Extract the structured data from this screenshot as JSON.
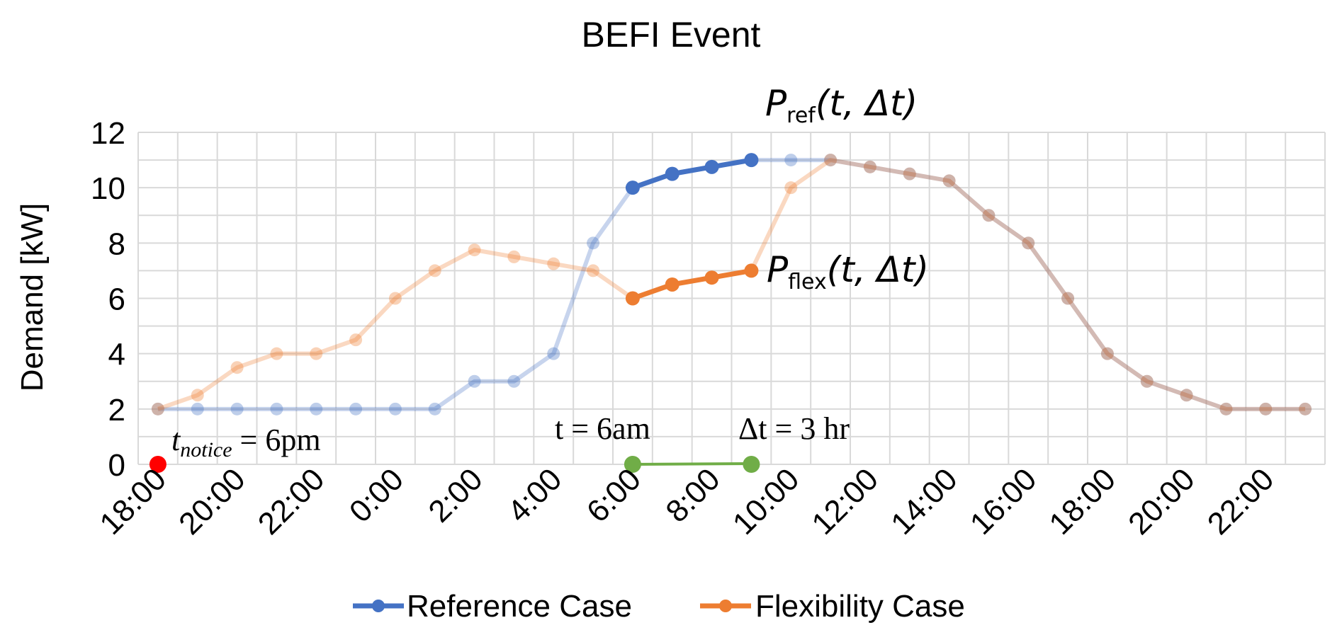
{
  "chart_data": {
    "type": "line",
    "title": "BEFI Event",
    "ylabel": "Demand [kW]",
    "xlabel": "",
    "ylim": [
      0,
      12
    ],
    "yticks": [
      0,
      2,
      4,
      6,
      8,
      10,
      12
    ],
    "grid": true,
    "categories": [
      "18:00",
      "19:00",
      "20:00",
      "21:00",
      "22:00",
      "23:00",
      "0:00",
      "1:00",
      "2:00",
      "3:00",
      "4:00",
      "5:00",
      "6:00",
      "7:00",
      "8:00",
      "9:00",
      "10:00",
      "11:00",
      "12:00",
      "13:00",
      "14:00",
      "15:00",
      "16:00",
      "17:00",
      "18:00",
      "19:00",
      "20:00",
      "21:00",
      "22:00",
      "23:00"
    ],
    "x_tick_labels": [
      "18:00",
      "20:00",
      "22:00",
      "0:00",
      "2:00",
      "4:00",
      "6:00",
      "8:00",
      "10:00",
      "12:00",
      "14:00",
      "16:00",
      "18:00",
      "20:00",
      "22:00"
    ],
    "series": [
      {
        "name": "Reference Case",
        "color": "#4472c4",
        "values": [
          2,
          2,
          2,
          2,
          2,
          2,
          2,
          2,
          3,
          3,
          4,
          8,
          10,
          10.5,
          10.75,
          11,
          11,
          11,
          10.75,
          10.5,
          10.25,
          9,
          8,
          6,
          4,
          3,
          2.5,
          2,
          2,
          2
        ]
      },
      {
        "name": "Flexibility Case",
        "color": "#ed7d31",
        "values": [
          2,
          2.5,
          3.5,
          4,
          4,
          4.5,
          6,
          7,
          7.75,
          7.5,
          7.25,
          7,
          6,
          6.5,
          6.75,
          7,
          10,
          11,
          10.75,
          10.5,
          10.25,
          9,
          8,
          6,
          4,
          3,
          2.5,
          2,
          2,
          2
        ]
      }
    ],
    "event_window": {
      "start": "6:00",
      "end": "9:00"
    },
    "notice_time": "18:00",
    "annotations": {
      "p_ref": {
        "main": "P",
        "sub": "ref",
        "args": "(t, Δt)"
      },
      "p_flex": {
        "main": "P",
        "sub": "flex",
        "args": "(t, Δt)"
      },
      "t_notice": {
        "var": "t",
        "sub": "notice",
        "rest": " = 6pm"
      },
      "t_start": {
        "text": "t = 6am"
      },
      "delta_t": {
        "text": "Δt = 3 hr"
      }
    },
    "legend_position": "bottom",
    "colors": {
      "notice_marker": "#ff0000",
      "event_marker": "#70ad47",
      "grid": "#d9d9d9"
    }
  }
}
